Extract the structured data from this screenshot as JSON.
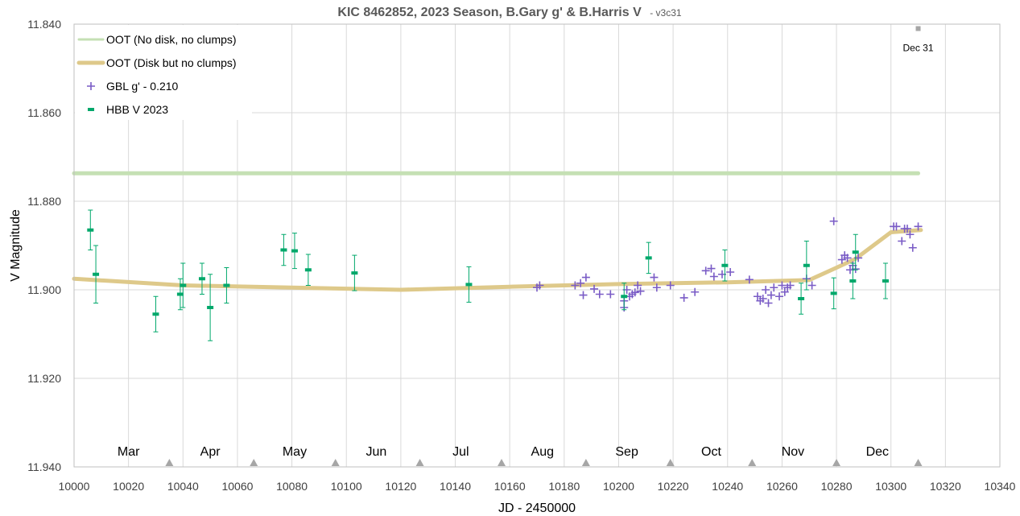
{
  "chart_data": {
    "type": "scatter",
    "title": "KIC 8462852, 2023 Season, B.Gary g' & B.Harris V",
    "subtitle": "- v3c31",
    "xlabel": "JD - 2450000",
    "ylabel": "V Magnitude",
    "xlim": [
      10000,
      10340
    ],
    "ylim": [
      11.94,
      11.84
    ],
    "y_inverted": true,
    "x_ticks": [
      "10000",
      "10020",
      "10040",
      "10060",
      "10080",
      "10100",
      "10120",
      "10140",
      "10160",
      "10180",
      "10200",
      "10220",
      "10240",
      "10260",
      "10280",
      "10300",
      "10320",
      "10340"
    ],
    "y_ticks": [
      "11.840",
      "11.860",
      "11.880",
      "11.900",
      "11.920",
      "11.940"
    ],
    "grid": true,
    "legend_position": "top-left",
    "months": [
      {
        "label": "Mar",
        "x": 10020
      },
      {
        "label": "Apr",
        "x": 10050
      },
      {
        "label": "May",
        "x": 10081
      },
      {
        "label": "Jun",
        "x": 10111
      },
      {
        "label": "Jul",
        "x": 10142
      },
      {
        "label": "Aug",
        "x": 10172
      },
      {
        "label": "Sep",
        "x": 10203
      },
      {
        "label": "Oct",
        "x": 10234
      },
      {
        "label": "Nov",
        "x": 10264
      },
      {
        "label": "Dec",
        "x": 10295
      }
    ],
    "month_boundaries": [
      10035,
      10066,
      10096,
      10127,
      10157,
      10188,
      10219,
      10249,
      10280,
      10310
    ],
    "annotation": {
      "label": "Dec 31",
      "x": 10310,
      "y": 11.841
    },
    "series": [
      {
        "name": "OOT (No disk, no clumps)",
        "kind": "line",
        "color": "#c5e0b4",
        "points": [
          [
            10000,
            11.8737
          ],
          [
            10310,
            11.8737
          ]
        ]
      },
      {
        "name": "OOT (Disk but no clumps)",
        "kind": "line",
        "color": "#dec98a",
        "points": [
          [
            10000,
            11.8975
          ],
          [
            10040,
            11.899
          ],
          [
            10080,
            11.8995
          ],
          [
            10120,
            11.9
          ],
          [
            10160,
            11.8993
          ],
          [
            10200,
            11.8987
          ],
          [
            10240,
            11.8983
          ],
          [
            10270,
            11.8978
          ],
          [
            10280,
            11.895
          ],
          [
            10287,
            11.893
          ],
          [
            10300,
            11.887
          ],
          [
            10311,
            11.8865
          ]
        ]
      },
      {
        "name": "GBL g' - 0.210",
        "kind": "plus",
        "color": "#7a5cc6",
        "points": [
          [
            10170,
            11.8995
          ],
          [
            10171,
            11.899
          ],
          [
            10184,
            11.899
          ],
          [
            10186,
            11.8985
          ],
          [
            10187,
            11.9012
          ],
          [
            10188,
            11.8972
          ],
          [
            10191,
            11.8998
          ],
          [
            10193,
            11.901
          ],
          [
            10197,
            11.901
          ],
          [
            10202,
            11.904
          ],
          [
            10202,
            11.9025
          ],
          [
            10203,
            11.9
          ],
          [
            10204,
            11.9015
          ],
          [
            10205,
            11.901
          ],
          [
            10206,
            11.9006
          ],
          [
            10207,
            11.899
          ],
          [
            10208,
            11.9003
          ],
          [
            10213,
            11.8972
          ],
          [
            10214,
            11.8995
          ],
          [
            10219,
            11.899
          ],
          [
            10224,
            11.9018
          ],
          [
            10228,
            11.9005
          ],
          [
            10232,
            11.8957
          ],
          [
            10234,
            11.8952
          ],
          [
            10235,
            11.897
          ],
          [
            10238,
            11.8965
          ],
          [
            10241,
            11.896
          ],
          [
            10248,
            11.8977
          ],
          [
            10251,
            11.9015
          ],
          [
            10252,
            11.9025
          ],
          [
            10253,
            11.902
          ],
          [
            10254,
            11.9
          ],
          [
            10255,
            11.903
          ],
          [
            10256,
            11.9012
          ],
          [
            10257,
            11.8995
          ],
          [
            10259,
            11.9015
          ],
          [
            10260,
            11.899
          ],
          [
            10261,
            11.9005
          ],
          [
            10262,
            11.8995
          ],
          [
            10263,
            11.899
          ],
          [
            10269,
            11.8975
          ],
          [
            10271,
            11.899
          ],
          [
            10279,
            11.8845
          ],
          [
            10282,
            11.8932
          ],
          [
            10283,
            11.8922
          ],
          [
            10284,
            11.8928
          ],
          [
            10285,
            11.8955
          ],
          [
            10286,
            11.8945
          ],
          [
            10287,
            11.8953
          ],
          [
            10288,
            11.8928
          ],
          [
            10301,
            11.8857
          ],
          [
            10302,
            11.8857
          ],
          [
            10304,
            11.889
          ],
          [
            10305,
            11.8862
          ],
          [
            10306,
            11.8862
          ],
          [
            10307,
            11.8875
          ],
          [
            10308,
            11.8905
          ],
          [
            10310,
            11.8857
          ]
        ]
      },
      {
        "name": "HBB V 2023",
        "kind": "errorbar",
        "color": "#00a86b",
        "points": [
          {
            "x": 10006,
            "y": 11.8865,
            "err": 0.0045
          },
          {
            "x": 10008,
            "y": 11.8965,
            "err": 0.0065
          },
          {
            "x": 10030,
            "y": 11.9055,
            "err": 0.004
          },
          {
            "x": 10039,
            "y": 11.901,
            "err": 0.0035
          },
          {
            "x": 10040,
            "y": 11.899,
            "err": 0.005
          },
          {
            "x": 10047,
            "y": 11.8975,
            "err": 0.0035
          },
          {
            "x": 10050,
            "y": 11.904,
            "err": 0.0075
          },
          {
            "x": 10056,
            "y": 11.899,
            "err": 0.004
          },
          {
            "x": 10077,
            "y": 11.891,
            "err": 0.0035
          },
          {
            "x": 10081,
            "y": 11.8912,
            "err": 0.004
          },
          {
            "x": 10086,
            "y": 11.8955,
            "err": 0.0035
          },
          {
            "x": 10103,
            "y": 11.8962,
            "err": 0.004
          },
          {
            "x": 10145,
            "y": 11.8988,
            "err": 0.004
          },
          {
            "x": 10202,
            "y": 11.9015,
            "err": 0.003
          },
          {
            "x": 10211,
            "y": 11.8928,
            "err": 0.0035
          },
          {
            "x": 10239,
            "y": 11.8945,
            "err": 0.0035
          },
          {
            "x": 10267,
            "y": 11.902,
            "err": 0.0035
          },
          {
            "x": 10269,
            "y": 11.8945,
            "err": 0.0055
          },
          {
            "x": 10279,
            "y": 11.9008,
            "err": 0.0035
          },
          {
            "x": 10286,
            "y": 11.898,
            "err": 0.004
          },
          {
            "x": 10287,
            "y": 11.8915,
            "err": 0.004
          },
          {
            "x": 10298,
            "y": 11.898,
            "err": 0.004
          }
        ]
      }
    ]
  }
}
